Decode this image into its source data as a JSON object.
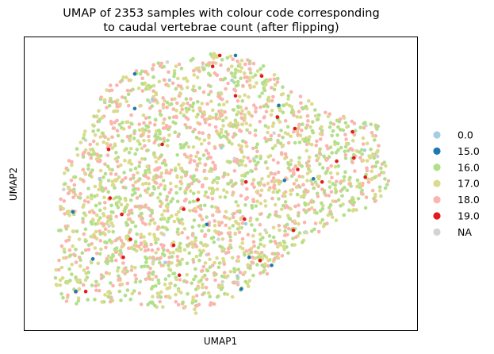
{
  "chart_data": {
    "type": "scatter",
    "title_line1": "UMAP of 2353 samples with colour code corresponding",
    "title_line2": "to caudal vertebrae count (after flipping)",
    "xlabel": "UMAP1",
    "ylabel": "UMAP2",
    "grid": false,
    "legend_placement": "right",
    "n_points": 2353,
    "xlim": [
      -0.05,
      1.05
    ],
    "ylim": [
      -0.05,
      1.05
    ],
    "legend": [
      {
        "label": "0.0",
        "color": "#a6cee3"
      },
      {
        "label": "15.0",
        "color": "#1f78b4"
      },
      {
        "label": "16.0",
        "color": "#b2df8a"
      },
      {
        "label": "17.0",
        "color": "#dbdb8d"
      },
      {
        "label": "18.0",
        "color": "#fbb4ae"
      },
      {
        "label": "19.0",
        "color": "#e31a1c"
      },
      {
        "label": "NA",
        "color": "#d3d3d3"
      }
    ],
    "highlight_points": [
      {
        "x": 0.258,
        "y": 0.913,
        "cls": "15.0"
      },
      {
        "x": 0.54,
        "y": 0.982,
        "cls": "15.0"
      },
      {
        "x": 0.258,
        "y": 0.783,
        "cls": "15.0"
      },
      {
        "x": 0.661,
        "y": 0.795,
        "cls": "15.0"
      },
      {
        "x": 0.677,
        "y": 0.514,
        "cls": "15.0"
      },
      {
        "x": 0.758,
        "y": 0.52,
        "cls": "15.0"
      },
      {
        "x": 0.46,
        "y": 0.349,
        "cls": "15.0"
      },
      {
        "x": 0.085,
        "y": 0.396,
        "cls": "15.0"
      },
      {
        "x": 0.141,
        "y": 0.22,
        "cls": "15.0"
      },
      {
        "x": 0.578,
        "y": 0.226,
        "cls": "15.0"
      },
      {
        "x": 0.641,
        "y": 0.196,
        "cls": "15.0"
      },
      {
        "x": 0.556,
        "y": 0.107,
        "cls": "15.0"
      },
      {
        "x": 0.093,
        "y": 0.098,
        "cls": "15.0"
      },
      {
        "x": 0.496,
        "y": 0.982,
        "cls": "19.0"
      },
      {
        "x": 0.657,
        "y": 0.751,
        "cls": "19.0"
      },
      {
        "x": 0.706,
        "y": 0.708,
        "cls": "19.0"
      },
      {
        "x": 0.867,
        "y": 0.696,
        "cls": "19.0"
      },
      {
        "x": 0.871,
        "y": 0.598,
        "cls": "19.0"
      },
      {
        "x": 0.823,
        "y": 0.586,
        "cls": "19.0"
      },
      {
        "x": 0.714,
        "y": 0.555,
        "cls": "19.0"
      },
      {
        "x": 0.569,
        "y": 0.508,
        "cls": "19.0"
      },
      {
        "x": 0.435,
        "y": 0.442,
        "cls": "19.0"
      },
      {
        "x": 0.189,
        "y": 0.448,
        "cls": "19.0"
      },
      {
        "x": 0.222,
        "y": 0.387,
        "cls": "19.0"
      },
      {
        "x": 0.395,
        "y": 0.406,
        "cls": "19.0"
      },
      {
        "x": 0.565,
        "y": 0.369,
        "cls": "19.0"
      },
      {
        "x": 0.702,
        "y": 0.327,
        "cls": "19.0"
      },
      {
        "x": 0.226,
        "y": 0.226,
        "cls": "19.0"
      },
      {
        "x": 0.121,
        "y": 0.098,
        "cls": "19.0"
      },
      {
        "x": 0.383,
        "y": 0.159,
        "cls": "19.0"
      },
      {
        "x": 0.246,
        "y": 0.293,
        "cls": "19.0"
      },
      {
        "x": 0.185,
        "y": 0.63,
        "cls": "19.0"
      },
      {
        "x": 0.54,
        "y": 0.831,
        "cls": "19.0"
      },
      {
        "x": 0.476,
        "y": 0.941,
        "cls": "19.0"
      },
      {
        "x": 0.782,
        "y": 0.508,
        "cls": "19.0"
      },
      {
        "x": 0.609,
        "y": 0.214,
        "cls": "19.0"
      },
      {
        "x": 0.367,
        "y": 0.271,
        "cls": "19.0"
      },
      {
        "x": 0.335,
        "y": 0.649,
        "cls": "19.0"
      },
      {
        "x": 0.903,
        "y": 0.526,
        "cls": "19.0"
      },
      {
        "x": 0.613,
        "y": 0.905,
        "cls": "19.0"
      }
    ]
  }
}
